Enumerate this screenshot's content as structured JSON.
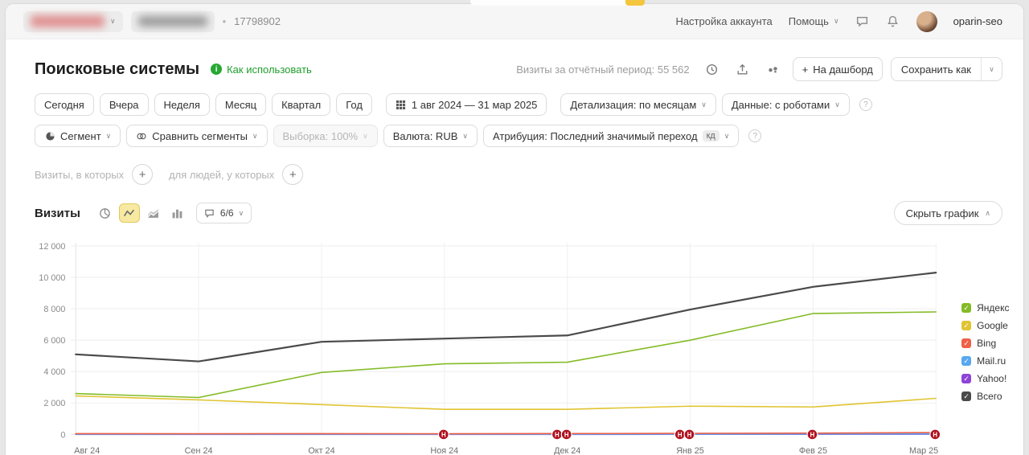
{
  "topbar": {
    "bullet": "•",
    "counter_id": "17798902",
    "account_settings": "Настройка аккаунта",
    "help": "Помощь",
    "username": "oparin-seo"
  },
  "header": {
    "title": "Поисковые системы",
    "how_to_use": "Как использовать",
    "visits_period_label": "Визиты за отчётный период:",
    "visits_period_value": "55 562",
    "plus": "+",
    "to_dashboard": "На дашборд",
    "save_as": "Сохранить как"
  },
  "filters": {
    "period_buttons": [
      "Сегодня",
      "Вчера",
      "Неделя",
      "Месяц",
      "Квартал",
      "Год"
    ],
    "date_range": "1 авг 2024 — 31 мар 2025",
    "detalization": "Детализация: по месяцам",
    "data_mode": "Данные: с роботами",
    "segment": "Сегмент",
    "compare_segments": "Сравнить сегменты",
    "sampling": "Выборка: 100%",
    "currency": "Валюта: RUB",
    "attribution": "Атрибуция: Последний значимый переход",
    "attribution_badge": "кд"
  },
  "segment_builder": {
    "visits_in": "Визиты, в которых",
    "for_people": "для людей, у которых"
  },
  "chart_header": {
    "title": "Визиты",
    "series_count": "6/6",
    "hide_chart": "Скрыть график"
  },
  "chart_data": {
    "type": "line",
    "title": "Визиты",
    "x": [
      "Авг 24",
      "Сен 24",
      "Окт 24",
      "Ноя 24",
      "Дек 24",
      "Янв 25",
      "Фев 25",
      "Мар 25"
    ],
    "ylim": [
      0,
      12000
    ],
    "yticks": [
      0,
      2000,
      4000,
      6000,
      8000,
      10000,
      12000
    ],
    "ytick_labels": [
      "0",
      "2 000",
      "4 000",
      "6 000",
      "8 000",
      "10 000",
      "12 000"
    ],
    "grid": true,
    "legend_position": "right",
    "total_name": "Всего",
    "series": [
      {
        "name": "Яндекс",
        "color": "#83bb26",
        "values": [
          2600,
          2350,
          3950,
          4500,
          4600,
          6000,
          7700,
          7800
        ]
      },
      {
        "name": "Google",
        "color": "#e0c432",
        "values": [
          2450,
          2200,
          1900,
          1600,
          1600,
          1800,
          1750,
          2300
        ]
      },
      {
        "name": "Bing",
        "color": "#ef6048",
        "values": [
          50,
          45,
          50,
          45,
          55,
          70,
          80,
          120
        ]
      },
      {
        "name": "Mail.ru",
        "color": "#57a8f0",
        "values": [
          20,
          15,
          15,
          15,
          20,
          25,
          30,
          45
        ]
      },
      {
        "name": "Yahoo!",
        "color": "#8e44d8",
        "values": [
          5,
          5,
          5,
          5,
          5,
          10,
          10,
          15
        ]
      },
      {
        "name": "Всего",
        "color": "#4a4a4a",
        "values": [
          5100,
          4650,
          5900,
          6100,
          6300,
          7950,
          9400,
          10300
        ]
      }
    ],
    "annotations": {
      "letter": "Н",
      "color": "#b0121f",
      "items": [
        {
          "x": "Ноя 24",
          "x_index": 3,
          "count": 1
        },
        {
          "x": "Дек 24",
          "x_index": 4,
          "count": 2
        },
        {
          "x": "Янв 25",
          "x_index": 5,
          "count": 2
        },
        {
          "x": "Фев 25",
          "x_index": 6,
          "count": 1
        },
        {
          "x": "Мар 25",
          "x_index": 7,
          "count": 1
        }
      ]
    }
  }
}
